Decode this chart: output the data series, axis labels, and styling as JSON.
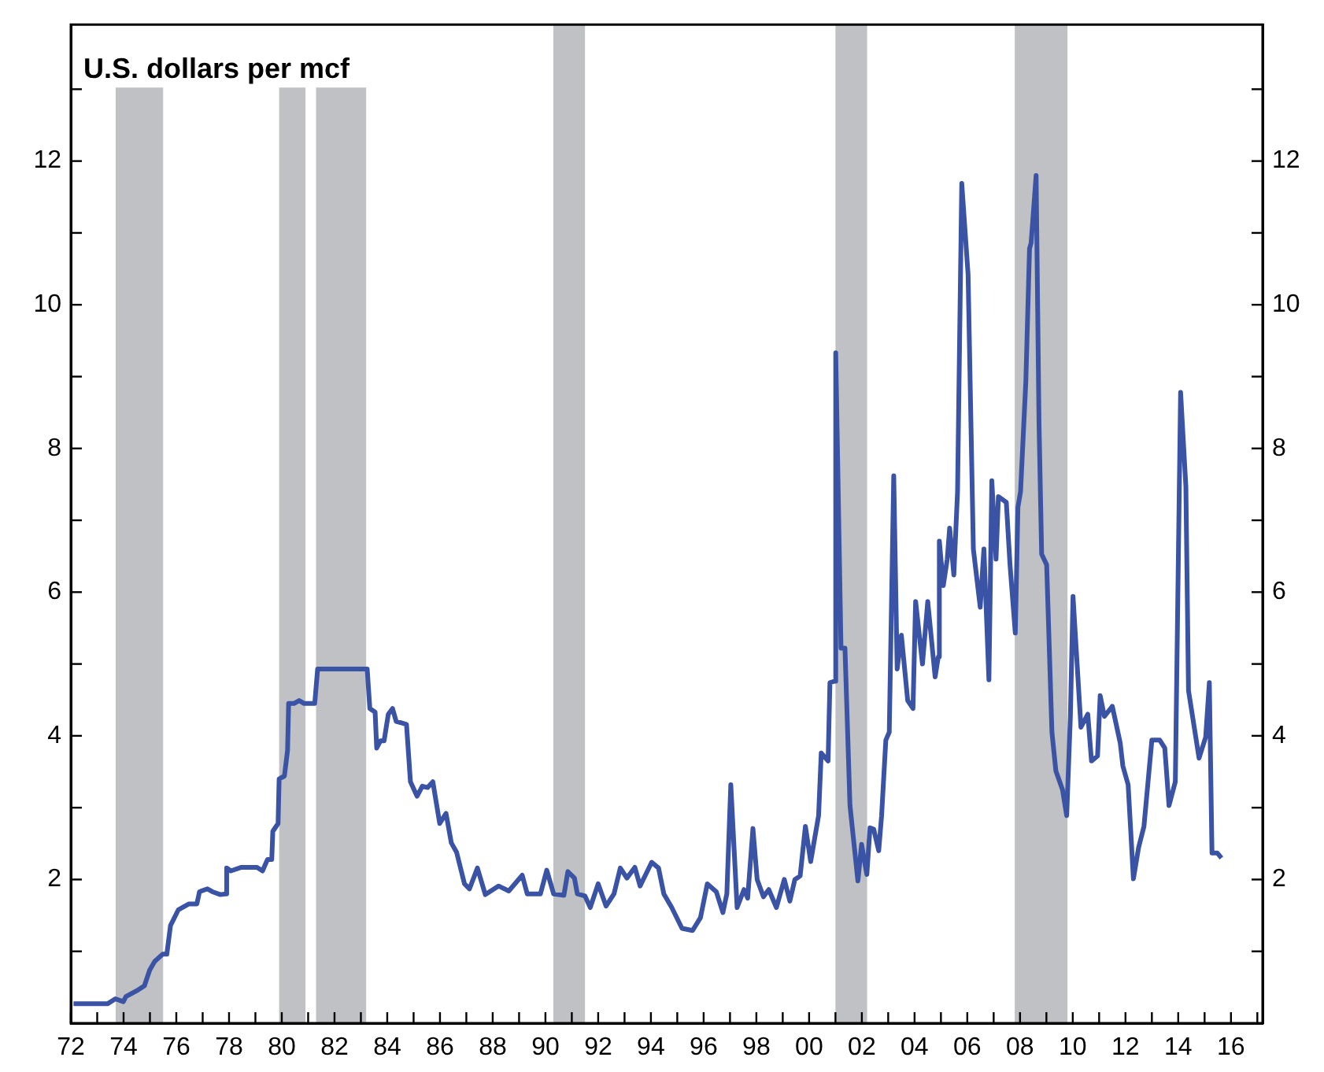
{
  "chart_data": {
    "type": "line",
    "title": "U.S. dollars per mcf",
    "x": [
      1972.1,
      1973.39,
      1973.69,
      1973.99,
      1974.09,
      1974.49,
      1974.79,
      1974.99,
      1975.18,
      1975.48,
      1975.64,
      1975.78,
      1976.08,
      1976.48,
      1976.78,
      1976.88,
      1977.18,
      1977.37,
      1977.67,
      1977.87,
      1977.91,
      1978.07,
      1978.47,
      1979.06,
      1979.27,
      1979.46,
      1979.62,
      1979.66,
      1979.86,
      1979.9,
      1980.1,
      1980.22,
      1980.26,
      1980.46,
      1980.66,
      1980.85,
      1981.25,
      1981.36,
      1981.65,
      1983.24,
      1983.34,
      1983.54,
      1983.6,
      1983.74,
      1983.88,
      1984.04,
      1984.2,
      1984.34,
      1984.54,
      1984.73,
      1984.88,
      1985.13,
      1985.33,
      1985.53,
      1985.73,
      1985.99,
      1986.23,
      1986.43,
      1986.63,
      1986.93,
      1987.12,
      1987.42,
      1987.72,
      1988.22,
      1988.61,
      1989.12,
      1989.31,
      1989.81,
      1990.05,
      1990.31,
      1990.7,
      1990.85,
      1991.1,
      1991.21,
      1991.5,
      1991.7,
      1992.0,
      1992.3,
      1992.6,
      1992.84,
      1993.09,
      1993.39,
      1993.59,
      1993.83,
      1994.03,
      1994.29,
      1994.49,
      1994.79,
      1995.18,
      1995.58,
      1995.88,
      1996.14,
      1996.48,
      1996.73,
      1996.88,
      1997.03,
      1997.27,
      1997.53,
      1997.67,
      1997.87,
      1998.03,
      1998.27,
      1998.47,
      1998.76,
      1999.06,
      1999.27,
      1999.46,
      1999.66,
      1999.86,
      2000.06,
      2000.36,
      2000.46,
      2000.72,
      2000.79,
      2000.96,
      2001.01,
      2001.21,
      2001.36,
      2001.55,
      2001.85,
      2001.99,
      2002.19,
      2002.31,
      2002.45,
      2002.64,
      2002.75,
      2002.91,
      2003.04,
      2003.21,
      2003.34,
      2003.5,
      2003.74,
      2003.94,
      2004.04,
      2004.3,
      2004.5,
      2004.78,
      2004.9,
      2004.94,
      2005.09,
      2005.24,
      2005.33,
      2005.49,
      2005.63,
      2005.79,
      2006.03,
      2006.23,
      2006.49,
      2006.63,
      2006.82,
      2006.93,
      2007.09,
      2007.18,
      2007.48,
      2007.62,
      2007.82,
      2007.92,
      2008.02,
      2008.22,
      2008.36,
      2008.42,
      2008.61,
      2008.72,
      2008.82,
      2009.01,
      2009.21,
      2009.36,
      2009.61,
      2009.77,
      2009.91,
      2010.01,
      2010.31,
      2010.57,
      2010.71,
      2010.94,
      2011.04,
      2011.2,
      2011.5,
      2011.8,
      2011.9,
      2012.1,
      2012.3,
      2012.5,
      2012.7,
      2013.0,
      2013.3,
      2013.49,
      2013.65,
      2013.89,
      2014.09,
      2014.29,
      2014.39,
      2014.79,
      2015.04,
      2015.18,
      2015.28,
      2015.48,
      2015.64
    ],
    "series": [
      {
        "color": "#3a53a4",
        "values": [
          0.27,
          0.27,
          0.34,
          0.3,
          0.37,
          0.45,
          0.52,
          0.74,
          0.86,
          0.96,
          0.96,
          1.36,
          1.58,
          1.66,
          1.66,
          1.83,
          1.87,
          1.83,
          1.79,
          1.8,
          2.16,
          2.12,
          2.17,
          2.17,
          2.12,
          2.28,
          2.28,
          2.67,
          2.78,
          3.4,
          3.44,
          3.8,
          4.45,
          4.45,
          4.49,
          4.45,
          4.45,
          4.93,
          4.93,
          4.93,
          4.38,
          4.33,
          3.83,
          3.93,
          3.93,
          4.3,
          4.38,
          4.2,
          4.18,
          4.16,
          3.36,
          3.16,
          3.3,
          3.28,
          3.36,
          2.78,
          2.92,
          2.51,
          2.38,
          1.94,
          1.87,
          2.16,
          1.79,
          1.91,
          1.84,
          2.06,
          1.8,
          1.8,
          2.13,
          1.8,
          1.78,
          2.11,
          2.02,
          1.8,
          1.77,
          1.61,
          1.94,
          1.63,
          1.8,
          2.16,
          2.02,
          2.17,
          1.91,
          2.09,
          2.24,
          2.16,
          1.8,
          1.61,
          1.32,
          1.29,
          1.47,
          1.94,
          1.83,
          1.54,
          1.8,
          3.32,
          1.61,
          1.86,
          1.74,
          2.71,
          2.0,
          1.76,
          1.86,
          1.61,
          2.0,
          1.7,
          2.0,
          2.05,
          2.74,
          2.25,
          2.89,
          3.76,
          3.65,
          4.74,
          4.76,
          9.33,
          5.22,
          5.22,
          3.03,
          1.98,
          2.49,
          2.07,
          2.72,
          2.7,
          2.4,
          2.89,
          3.94,
          4.05,
          7.62,
          4.93,
          5.4,
          4.49,
          4.38,
          5.87,
          5.0,
          5.87,
          4.82,
          5.1,
          6.71,
          6.09,
          6.46,
          6.89,
          6.24,
          7.4,
          11.69,
          10.42,
          6.6,
          5.79,
          6.6,
          4.78,
          7.55,
          6.46,
          7.33,
          7.25,
          6.38,
          5.43,
          7.18,
          7.4,
          8.93,
          10.78,
          10.86,
          11.8,
          8.35,
          6.53,
          6.38,
          4.05,
          3.51,
          3.25,
          2.89,
          4.27,
          5.94,
          4.12,
          4.3,
          3.65,
          3.72,
          4.56,
          4.27,
          4.41,
          3.9,
          3.58,
          3.32,
          2.01,
          2.45,
          2.74,
          3.94,
          3.94,
          3.83,
          3.03,
          3.36,
          8.78,
          7.47,
          4.63,
          3.69,
          3.98,
          4.74,
          2.37,
          2.37,
          2.3
        ]
      }
    ],
    "xlim": [
      1972,
      2017.2
    ],
    "xticks": [
      {
        "value": 1972,
        "label": "72"
      },
      {
        "value": 1973,
        "label": null
      },
      {
        "value": 1974,
        "label": "74"
      },
      {
        "value": 1975,
        "label": null
      },
      {
        "value": 1976,
        "label": "76"
      },
      {
        "value": 1977,
        "label": null
      },
      {
        "value": 1978,
        "label": "78"
      },
      {
        "value": 1979,
        "label": null
      },
      {
        "value": 1980,
        "label": "80"
      },
      {
        "value": 1981,
        "label": null
      },
      {
        "value": 1982,
        "label": "82"
      },
      {
        "value": 1983,
        "label": null
      },
      {
        "value": 1984,
        "label": "84"
      },
      {
        "value": 1985,
        "label": null
      },
      {
        "value": 1986,
        "label": "86"
      },
      {
        "value": 1987,
        "label": null
      },
      {
        "value": 1988,
        "label": "88"
      },
      {
        "value": 1989,
        "label": null
      },
      {
        "value": 1990,
        "label": "90"
      },
      {
        "value": 1991,
        "label": null
      },
      {
        "value": 1992,
        "label": "92"
      },
      {
        "value": 1993,
        "label": null
      },
      {
        "value": 1994,
        "label": "94"
      },
      {
        "value": 1995,
        "label": null
      },
      {
        "value": 1996,
        "label": "96"
      },
      {
        "value": 1997,
        "label": null
      },
      {
        "value": 1998,
        "label": "98"
      },
      {
        "value": 1999,
        "label": null
      },
      {
        "value": 2000,
        "label": "00"
      },
      {
        "value": 2001,
        "label": null
      },
      {
        "value": 2002,
        "label": "02"
      },
      {
        "value": 2003,
        "label": null
      },
      {
        "value": 2004,
        "label": "04"
      },
      {
        "value": 2005,
        "label": null
      },
      {
        "value": 2006,
        "label": "06"
      },
      {
        "value": 2007,
        "label": null
      },
      {
        "value": 2008,
        "label": "08"
      },
      {
        "value": 2009,
        "label": null
      },
      {
        "value": 2010,
        "label": "10"
      },
      {
        "value": 2011,
        "label": null
      },
      {
        "value": 2012,
        "label": "12"
      },
      {
        "value": 2013,
        "label": null
      },
      {
        "value": 2014,
        "label": "14"
      },
      {
        "value": 2015,
        "label": null
      },
      {
        "value": 2016,
        "label": "16"
      },
      {
        "value": 2017,
        "label": null
      }
    ],
    "ylim": [
      0,
      13.9
    ],
    "yticks": [
      {
        "value": 1,
        "label": null
      },
      2,
      {
        "value": 3,
        "label": null
      },
      4,
      {
        "value": 5,
        "label": null
      },
      6,
      {
        "value": 7,
        "label": null
      },
      8,
      {
        "value": 9,
        "label": null
      },
      10,
      {
        "value": 11,
        "label": null
      },
      12,
      {
        "value": 13,
        "label": null
      }
    ],
    "y2lim": [
      0,
      13.9
    ],
    "y2ticks": [
      {
        "value": 1,
        "label": null
      },
      2,
      {
        "value": 3,
        "label": null
      },
      4,
      {
        "value": 5,
        "label": null
      },
      6,
      {
        "value": 7,
        "label": null
      },
      8,
      {
        "value": 9,
        "label": null
      },
      10,
      {
        "value": 11,
        "label": null
      },
      12,
      {
        "value": 13,
        "label": null
      }
    ],
    "bands": [
      {
        "axis": "x",
        "from": 1973.7,
        "to": 1975.5,
        "color": "#c0c1c5"
      },
      {
        "axis": "x",
        "from": 1979.9,
        "to": 1980.9,
        "color": "#c0c1c5"
      },
      {
        "axis": "x",
        "from": 1981.3,
        "to": 1983.2,
        "color": "#c0c1c5"
      },
      {
        "axis": "x",
        "from": 1990.3,
        "to": 1991.5,
        "color": "#c0c1c5"
      },
      {
        "axis": "x",
        "from": 2001.0,
        "to": 2002.2,
        "color": "#c0c1c5"
      },
      {
        "axis": "x",
        "from": 2007.8,
        "to": 2009.8,
        "color": "#c0c1c5"
      }
    ],
    "grid": false,
    "legend": false,
    "marker": "none",
    "line_style": "solid"
  }
}
